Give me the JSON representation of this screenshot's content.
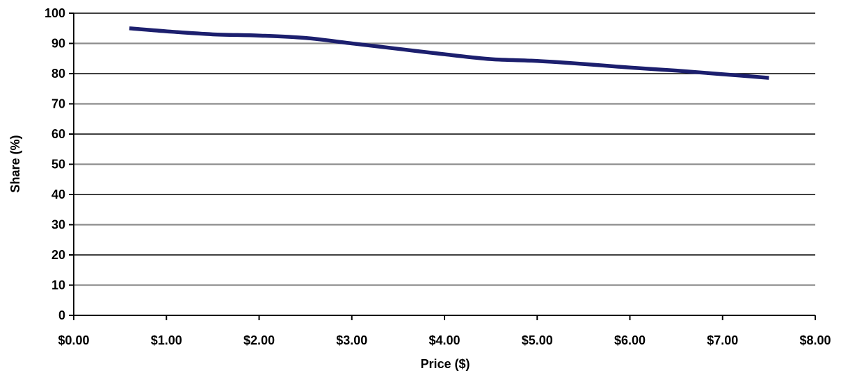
{
  "chart_data": {
    "type": "line",
    "xlabel": "Price ($)",
    "ylabel": "Share (%)",
    "xlim": [
      0,
      8
    ],
    "ylim": [
      0,
      100
    ],
    "x_ticks": [
      0,
      1,
      2,
      3,
      4,
      5,
      6,
      7,
      8
    ],
    "x_tick_labels": [
      "$0.00",
      "$1.00",
      "$2.00",
      "$3.00",
      "$4.00",
      "$5.00",
      "$6.00",
      "$7.00",
      "$8.00"
    ],
    "y_ticks": [
      0,
      10,
      20,
      30,
      40,
      50,
      60,
      70,
      80,
      90,
      100
    ],
    "y_tick_labels": [
      "0",
      "10",
      "20",
      "30",
      "40",
      "50",
      "60",
      "70",
      "80",
      "90",
      "100"
    ],
    "grid": true,
    "legend": "none",
    "series": [
      {
        "color": "#1c1f6e",
        "points": [
          [
            0.6,
            95
          ],
          [
            1.0,
            94
          ],
          [
            1.5,
            93
          ],
          [
            2.0,
            92.6
          ],
          [
            2.5,
            91.8
          ],
          [
            3.0,
            90
          ],
          [
            3.5,
            88.2
          ],
          [
            4.0,
            86.4
          ],
          [
            4.5,
            84.8
          ],
          [
            5.0,
            84.2
          ],
          [
            5.5,
            83.2
          ],
          [
            6.0,
            82
          ],
          [
            6.5,
            81
          ],
          [
            7.0,
            79.8
          ],
          [
            7.5,
            78.6
          ]
        ]
      }
    ]
  }
}
